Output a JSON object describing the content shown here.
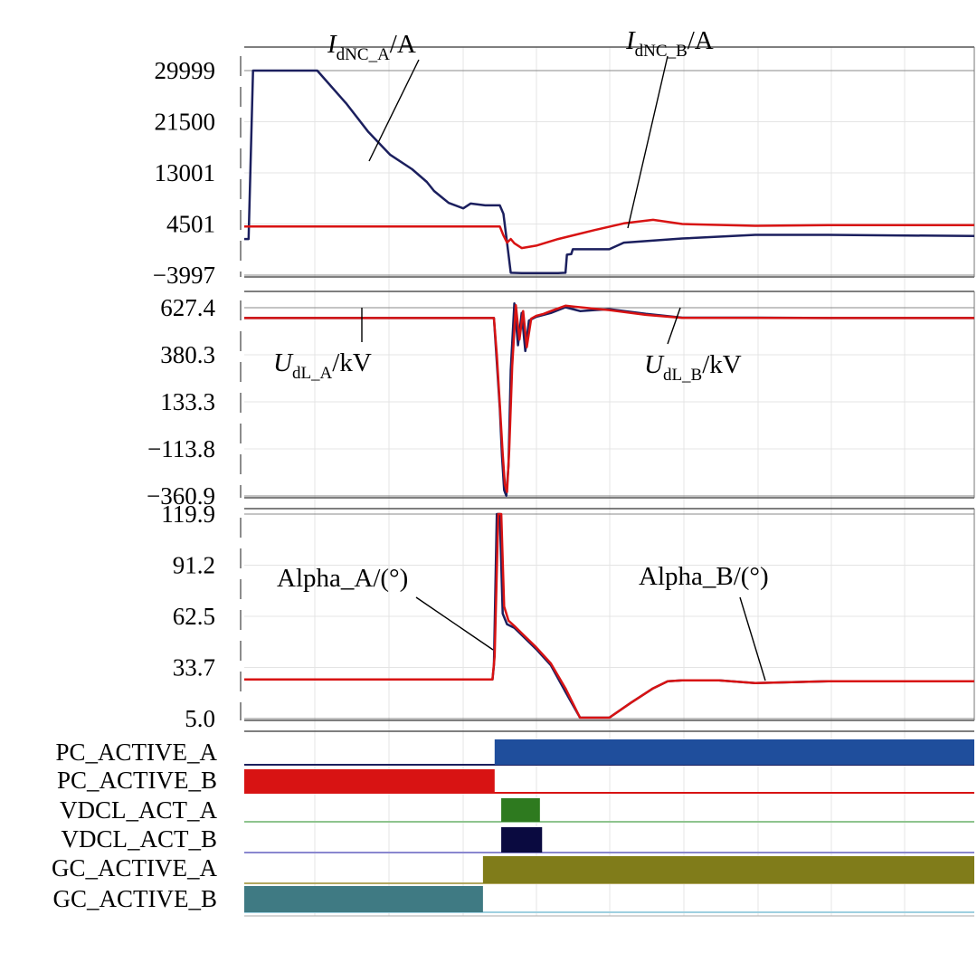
{
  "chart_data": [
    {
      "type": "line",
      "panel": "current",
      "ylim": [
        -3997,
        29999
      ],
      "yticks": [
        "29999",
        "21500",
        "13001",
        "4501",
        "−3997"
      ],
      "xlim": [
        0,
        100
      ],
      "labels": [
        {
          "pre": "I",
          "sub": "dNC_A",
          "post": "/A"
        },
        {
          "pre": "I",
          "sub": "dNC_B",
          "post": "/A"
        }
      ],
      "series": [
        {
          "name": "IdNC_A/A",
          "color": "#1b1f5e",
          "x": [
            0,
            0.6,
            1.2,
            10,
            14,
            17,
            20,
            23,
            25,
            26,
            27,
            28,
            30,
            31,
            33,
            35,
            35.5,
            36,
            36.5,
            38,
            40,
            43,
            44,
            44.2,
            44.8,
            45,
            46,
            50,
            52,
            60,
            70,
            80,
            100
          ],
          "y": [
            2000,
            2000,
            29999,
            29999,
            24500,
            19800,
            16000,
            13600,
            11500,
            10000,
            9000,
            8000,
            7100,
            7900,
            7600,
            7600,
            6200,
            1400,
            -3600,
            -3650,
            -3650,
            -3650,
            -3600,
            -600,
            -500,
            300,
            300,
            300,
            1400,
            2100,
            2700,
            2700,
            2500
          ]
        },
        {
          "name": "IdNC_B/A",
          "color": "#d81313",
          "x": [
            0,
            35,
            35.5,
            36,
            36.5,
            37,
            38,
            40,
            43,
            48,
            52,
            56,
            60,
            70,
            80,
            100
          ],
          "y": [
            4100,
            4100,
            2600,
            1400,
            2000,
            1300,
            500,
            900,
            2000,
            3500,
            4600,
            5200,
            4500,
            4200,
            4300,
            4300
          ]
        }
      ]
    },
    {
      "type": "line",
      "panel": "voltage",
      "ylim": [
        -360.9,
        627.4
      ],
      "yticks": [
        "627.4",
        "380.3",
        "133.3",
        "−113.8",
        "−360.9"
      ],
      "xlim": [
        0,
        100
      ],
      "labels": [
        {
          "pre": "U",
          "sub": "dL_A",
          "post": "/kV"
        },
        {
          "pre": "U",
          "sub": "dL_B",
          "post": "/kV"
        }
      ],
      "series": [
        {
          "name": "UdL_A/kV",
          "color": "#1b1f5e",
          "x": [
            0,
            34.2,
            34.5,
            35,
            35.3,
            35.6,
            35.9,
            36.2,
            36.5,
            37,
            37.5,
            38,
            38.5,
            39,
            40,
            41,
            42,
            44,
            46,
            48,
            50,
            55,
            60,
            70,
            80,
            100
          ],
          "y": [
            573,
            573,
            400,
            100,
            -150,
            -330,
            -360,
            -200,
            300,
            650,
            430,
            600,
            400,
            560,
            580,
            590,
            600,
            630,
            610,
            615,
            620,
            595,
            575,
            575,
            573,
            573
          ]
        },
        {
          "name": "UdL_B/kV",
          "color": "#d81313",
          "x": [
            0,
            34.2,
            34.6,
            35,
            35.4,
            35.7,
            36,
            36.3,
            36.7,
            37.2,
            37.7,
            38.2,
            38.7,
            39.3,
            40,
            41,
            42,
            44,
            46,
            48,
            50,
            55,
            60,
            70,
            80,
            100
          ],
          "y": [
            573,
            573,
            380,
            120,
            -140,
            -300,
            -340,
            -120,
            320,
            640,
            460,
            610,
            420,
            570,
            585,
            595,
            610,
            638,
            630,
            622,
            615,
            590,
            574,
            574,
            573,
            573
          ]
        }
      ]
    },
    {
      "type": "line",
      "panel": "alpha",
      "ylim": [
        5.0,
        119.9
      ],
      "yticks": [
        "119.9",
        "91.2",
        "62.5",
        "33.7",
        "5.0"
      ],
      "xlim": [
        0,
        100
      ],
      "labels": [
        {
          "pre": "Alpha_A/(°)",
          "sub": "",
          "post": ""
        },
        {
          "pre": "Alpha_B/(°)",
          "sub": "",
          "post": ""
        }
      ],
      "series": [
        {
          "name": "Alpha_A/(°)",
          "color": "#1b1f5e",
          "x": [
            0,
            34,
            34.2,
            34.6,
            35,
            35.4,
            36,
            37,
            38,
            40,
            42,
            44,
            46,
            48,
            50,
            53,
            56,
            58,
            60,
            65,
            70,
            80,
            100
          ],
          "y": [
            27,
            27,
            35,
            119.9,
            119.9,
            64,
            58,
            56,
            52,
            44,
            35,
            20,
            5.5,
            5.5,
            5.5,
            14,
            22,
            26,
            26.5,
            26.5,
            25,
            26,
            26
          ]
        },
        {
          "name": "Alpha_B/(°)",
          "color": "#d81313",
          "x": [
            0,
            34,
            34.3,
            34.8,
            35.2,
            35.6,
            36.2,
            37,
            38,
            40,
            42,
            44,
            46,
            48,
            50,
            53,
            56,
            58,
            60,
            65,
            70,
            80,
            100
          ],
          "y": [
            27,
            27,
            40,
            119.9,
            119.9,
            68,
            60,
            57,
            53,
            45,
            36,
            22,
            5.5,
            5.5,
            5.5,
            14,
            22,
            26,
            26.5,
            26.5,
            25,
            26,
            26
          ]
        }
      ]
    },
    {
      "type": "digital",
      "panel": "flags",
      "xlim": [
        0,
        100
      ],
      "signals": [
        {
          "name": "PC_ACTIVE_A",
          "label": "PC_ACTIVE_A",
          "color": "#1f4e9c",
          "line": "#1b1f5e",
          "pulses": [
            [
              34.3,
              100
            ]
          ]
        },
        {
          "name": "PC_ACTIVE_B",
          "label": "PC_ACTIVE_B",
          "color": "#d81313",
          "line": "#d81313",
          "pulses": [
            [
              0,
              34.3
            ]
          ]
        },
        {
          "name": "VDCL_ACT_A",
          "label": "VDCL_ACT_A",
          "color": "#2e7a1f",
          "line": "#8ec48e",
          "pulses": [
            [
              35.2,
              40.5
            ]
          ]
        },
        {
          "name": "VDCL_ACT_B",
          "label": "VDCL_ACT_B",
          "color": "#0a0a40",
          "line": "#8a87cf",
          "pulses": [
            [
              35.2,
              40.8
            ]
          ]
        },
        {
          "name": "GC_ACTIVE_A",
          "label": "GC_ACTIVE_A",
          "color": "#807c1a",
          "line": "#b3a860",
          "pulses": [
            [
              32.7,
              100
            ]
          ]
        },
        {
          "name": "GC_ACTIVE_B",
          "label": "GC_ACTIVE_B",
          "color": "#3f7a83",
          "line": "#9fd0e0",
          "pulses": [
            [
              0,
              32.7
            ]
          ]
        }
      ]
    }
  ]
}
